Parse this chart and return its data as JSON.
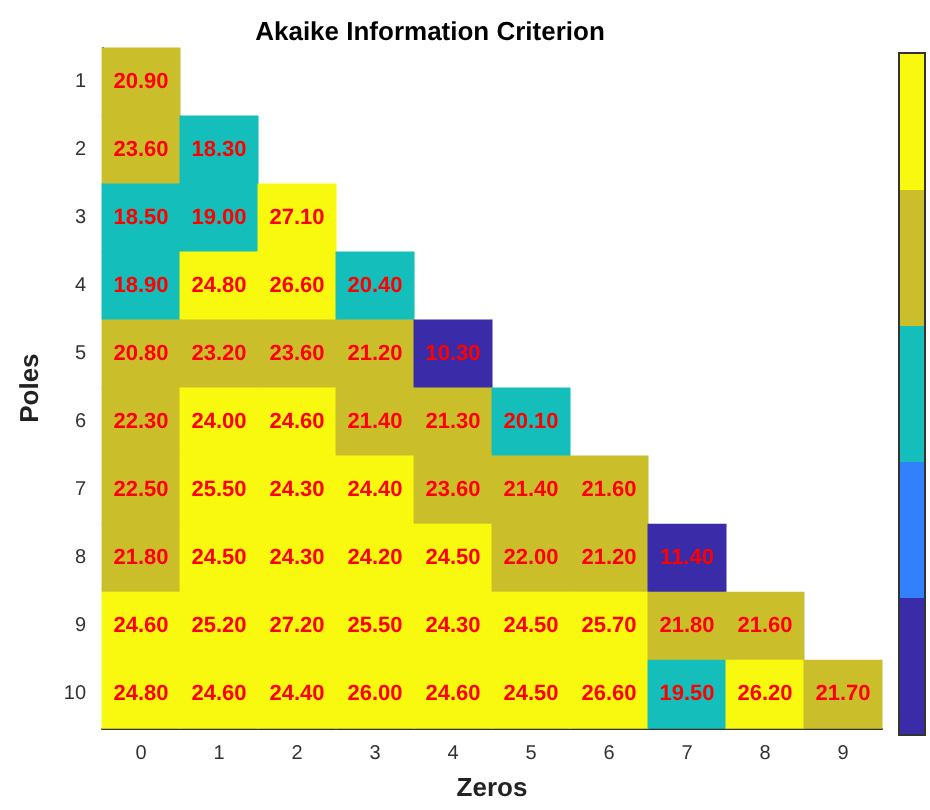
{
  "chart_data": {
    "type": "heatmap",
    "title": "Akaike Information Criterion",
    "xlabel": "Zeros",
    "ylabel": "Poles",
    "categories": [
      "0",
      "1",
      "2",
      "3",
      "4",
      "5",
      "6",
      "7",
      "8",
      "9"
    ],
    "y_categories": [
      "1",
      "2",
      "3",
      "4",
      "5",
      "6",
      "7",
      "8",
      "9",
      "10"
    ],
    "cells": [
      [
        20.9,
        null,
        null,
        null,
        null,
        null,
        null,
        null,
        null,
        null
      ],
      [
        23.6,
        18.3,
        null,
        null,
        null,
        null,
        null,
        null,
        null,
        null
      ],
      [
        18.5,
        19.0,
        27.1,
        null,
        null,
        null,
        null,
        null,
        null,
        null
      ],
      [
        18.9,
        24.8,
        26.6,
        20.4,
        null,
        null,
        null,
        null,
        null,
        null
      ],
      [
        20.8,
        23.2,
        23.6,
        21.2,
        10.3,
        null,
        null,
        null,
        null,
        null
      ],
      [
        22.3,
        24.0,
        24.6,
        21.4,
        21.3,
        20.1,
        null,
        null,
        null,
        null
      ],
      [
        22.5,
        25.5,
        24.3,
        24.4,
        23.6,
        21.4,
        21.6,
        null,
        null,
        null
      ],
      [
        21.8,
        24.5,
        24.3,
        24.2,
        24.5,
        22.0,
        21.2,
        11.4,
        null,
        null
      ],
      [
        24.6,
        25.2,
        27.2,
        25.5,
        24.3,
        24.5,
        25.7,
        21.8,
        21.6,
        null
      ],
      [
        24.8,
        24.6,
        24.4,
        26.0,
        24.6,
        24.5,
        26.6,
        19.5,
        26.2,
        21.7
      ]
    ],
    "cell_labels": [
      [
        "20.90",
        null,
        null,
        null,
        null,
        null,
        null,
        null,
        null,
        null
      ],
      [
        "23.60",
        "18.30",
        null,
        null,
        null,
        null,
        null,
        null,
        null,
        null
      ],
      [
        "18.50",
        "19.00",
        "27.10",
        null,
        null,
        null,
        null,
        null,
        null,
        null
      ],
      [
        "18.90",
        "24.80",
        "26.60",
        "20.40",
        null,
        null,
        null,
        null,
        null,
        null
      ],
      [
        "20.80",
        "23.20",
        "23.60",
        "21.20",
        "10.30",
        null,
        null,
        null,
        null,
        null
      ],
      [
        "22.30",
        "24.00",
        "24.60",
        "21.40",
        "21.30",
        "20.10",
        null,
        null,
        null,
        null
      ],
      [
        "22.50",
        "25.50",
        "24.30",
        "24.40",
        "23.60",
        "21.40",
        "21.60",
        null,
        null,
        null
      ],
      [
        "21.80",
        "24.50",
        "24.30",
        "24.20",
        "24.50",
        "22.00",
        "21.20",
        "11.40",
        null,
        null
      ],
      [
        "24.60",
        "25.20",
        "27.20",
        "25.50",
        "24.30",
        "24.50",
        "25.70",
        "21.80",
        "21.60",
        null
      ],
      [
        "24.80",
        "24.60",
        "24.40",
        "26.00",
        "24.60",
        "24.50",
        "26.60",
        "19.50",
        "26.20",
        "21.70"
      ]
    ],
    "colors": [
      "#3a2ba8",
      "#3380fc",
      "#14bfbb",
      "#cabf2a",
      "#f9f90f"
    ]
  }
}
